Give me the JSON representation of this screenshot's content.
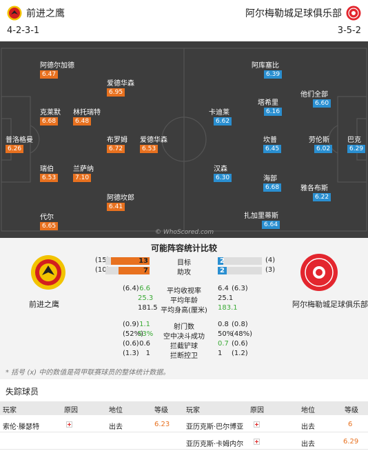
{
  "header": {
    "home_team": "前进之鹰",
    "away_team": "阿尔梅勒城足球俱乐部",
    "home_formation": "4-2-3-1",
    "away_formation": "3-5-2"
  },
  "home_players": [
    {
      "name": "阿德尔加德",
      "rating": "6.47"
    },
    {
      "name": "爱德华森",
      "rating": "6.95"
    },
    {
      "name": "克莱默",
      "rating": "6.68"
    },
    {
      "name": "林托瑞特",
      "rating": "6.48"
    },
    {
      "name": "普洛格曼",
      "rating": "6.26"
    },
    {
      "name": "布罗姆",
      "rating": "6.72"
    },
    {
      "name": "爱德华森",
      "rating": "6.53"
    },
    {
      "name": "瑞伯",
      "rating": "6.53"
    },
    {
      "name": "兰萨纳",
      "rating": "7.10"
    },
    {
      "name": "阿德坎郎",
      "rating": "6.41"
    },
    {
      "name": "代尔",
      "rating": "6.65"
    }
  ],
  "away_players": [
    {
      "name": "阿库塞比",
      "rating": "6.39"
    },
    {
      "name": "他们全部",
      "rating": "6.60"
    },
    {
      "name": "塔希里",
      "rating": "6.16"
    },
    {
      "name": "卡迪莱",
      "rating": "6.62"
    },
    {
      "name": "坎普",
      "rating": "6.45"
    },
    {
      "name": "劳伦斯",
      "rating": "6.02"
    },
    {
      "name": "巴克",
      "rating": "6.29"
    },
    {
      "name": "汉森",
      "rating": "6.30"
    },
    {
      "name": "海部",
      "rating": "6.68"
    },
    {
      "name": "雅各布斯",
      "rating": "6.22"
    },
    {
      "name": "扎加里蒂斯",
      "rating": "6.64"
    }
  ],
  "watermark": "© WhoScored.com",
  "comparison": {
    "title": "可能阵容统计比较",
    "home_label": "前进之鹰",
    "away_label": "阿尔梅勒城足球俱乐部",
    "bars": [
      {
        "label": "目标",
        "home_total": "(15)",
        "home": "13",
        "home_frac": 0.87,
        "away": "2",
        "away_frac": 0.13,
        "away_total": "(4)"
      },
      {
        "label": "助攻",
        "home_total": "(10)",
        "home": "7",
        "home_frac": 0.7,
        "away": "2",
        "away_frac": 0.2,
        "away_total": "(3)"
      }
    ],
    "stats": [
      {
        "label": "平均收视率",
        "home_total": "(6.4)",
        "home": "6.6",
        "away": "6.4",
        "away_total": "(6.3)"
      },
      {
        "label": "平均年龄",
        "home_total": "",
        "home": "25.3",
        "away": "25.1",
        "away_total": ""
      },
      {
        "label": "平均身高(厘米)",
        "home_total": "",
        "home": "181.5",
        "away": "183.1",
        "away_total": ""
      },
      {
        "label": "射门数",
        "home_total": "(0.9)",
        "home": "1.1",
        "away": "0.8",
        "away_total": "(0.8)"
      },
      {
        "label": "空中决斗成功",
        "home_total": "(52%)",
        "home": "53%",
        "away": "50%",
        "away_total": "(48%)"
      },
      {
        "label": "拦截铲球",
        "home_total": "(0.6)",
        "home": "0.6",
        "away": "0.7",
        "away_total": "(0.6)"
      },
      {
        "label": "拦断控卫",
        "home_total": "(1.3)",
        "home": "1",
        "away": "1",
        "away_total": "(1.2)"
      }
    ],
    "note": "* 括号 (x) 中的数值是荷甲联赛球员的整体统计数据。"
  },
  "missing": {
    "title": "失踪球员",
    "headers": {
      "player": "玩家",
      "reason": "原因",
      "status": "地位",
      "rating": "等级"
    },
    "home": [
      {
        "player": "索伦·滕瑟特",
        "status": "出去",
        "rating": "6.23"
      }
    ],
    "away": [
      {
        "player": "亚历克斯·巴尔博亚",
        "status": "出去",
        "rating": "6"
      },
      {
        "player": "亚历克斯·卡姆内尔",
        "status": "出去",
        "rating": "6.29"
      }
    ]
  },
  "colors": {
    "home": "#e8711f",
    "away": "#2a8fd1",
    "pitch": "#3d3d3d"
  }
}
